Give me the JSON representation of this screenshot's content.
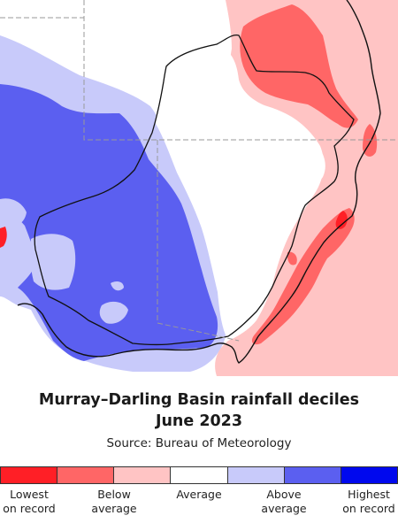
{
  "title": {
    "line1": "Murray–Darling Basin rainfall deciles",
    "line2": "June 2023"
  },
  "source": "Source: Bureau of Meteorology",
  "legend": {
    "swatches": [
      {
        "name": "lowest-on-record",
        "color": "#ff1f26"
      },
      {
        "name": "very-much-below",
        "color": "#ff6666"
      },
      {
        "name": "below-average",
        "color": "#ffc4c4"
      },
      {
        "name": "average",
        "color": "#ffffff"
      },
      {
        "name": "above-average",
        "color": "#c8cafa"
      },
      {
        "name": "very-much-above",
        "color": "#5b5ff0"
      },
      {
        "name": "highest-on-record",
        "color": "#0008ee"
      }
    ],
    "labels": {
      "lowest": "Lowest\non record",
      "below": "Below\naverage",
      "average": "Average",
      "above": "Above\naverage",
      "highest": "Highest\non record"
    }
  },
  "colors": {
    "lowest": "#ff1f26",
    "very_below": "#ff6666",
    "below": "#ffc4c4",
    "average": "#ffffff",
    "above": "#c8cafa",
    "very_above": "#5b5ff0",
    "highest": "#0008ee",
    "basin_outline": "#111111",
    "state_border": "#888888"
  }
}
